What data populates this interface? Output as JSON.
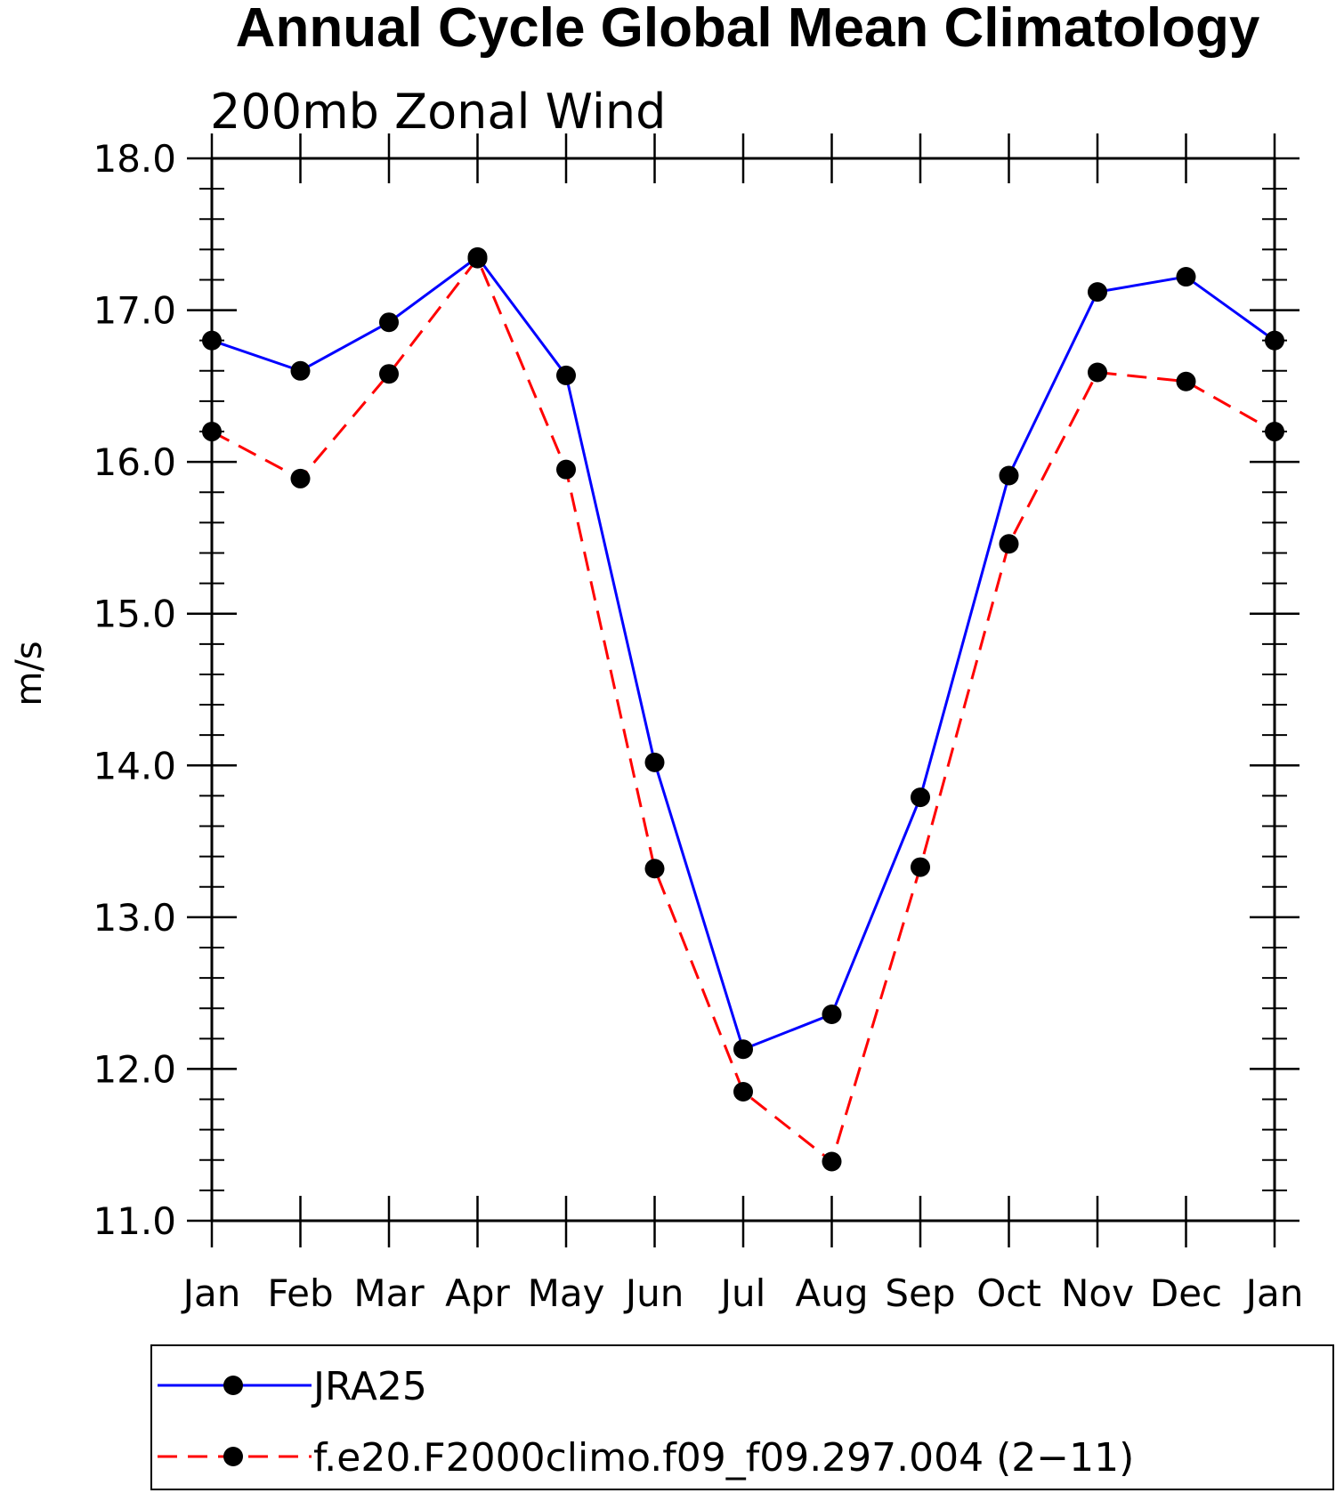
{
  "chart_data": {
    "type": "line",
    "title": "Annual Cycle Global Mean Climatology",
    "subtitle": "200mb Zonal Wind",
    "xlabel": "",
    "ylabel": "m/s",
    "categories": [
      "Jan",
      "Feb",
      "Mar",
      "Apr",
      "May",
      "Jun",
      "Jul",
      "Aug",
      "Sep",
      "Oct",
      "Nov",
      "Dec",
      "Jan"
    ],
    "ylim": [
      11.0,
      18.0
    ],
    "y_ticks": [
      "11.0",
      "12.0",
      "13.0",
      "14.0",
      "15.0",
      "16.0",
      "17.0",
      "18.0"
    ],
    "grid": false,
    "legend_position": "bottom",
    "marker": "filled-circle",
    "series": [
      {
        "name": "JRA25",
        "color": "#0000ff",
        "line_style": "solid",
        "values": [
          16.8,
          16.6,
          16.92,
          17.35,
          16.57,
          14.02,
          12.13,
          12.36,
          13.79,
          15.91,
          17.12,
          17.22,
          16.8
        ]
      },
      {
        "name": "f.e20.F2000climo.f09_f09.297.004 (2−11)",
        "color": "#ff0000",
        "line_style": "dashed",
        "values": [
          16.2,
          15.89,
          16.58,
          17.34,
          15.95,
          13.32,
          11.85,
          11.39,
          13.33,
          15.46,
          16.59,
          16.53,
          16.2
        ]
      }
    ]
  }
}
